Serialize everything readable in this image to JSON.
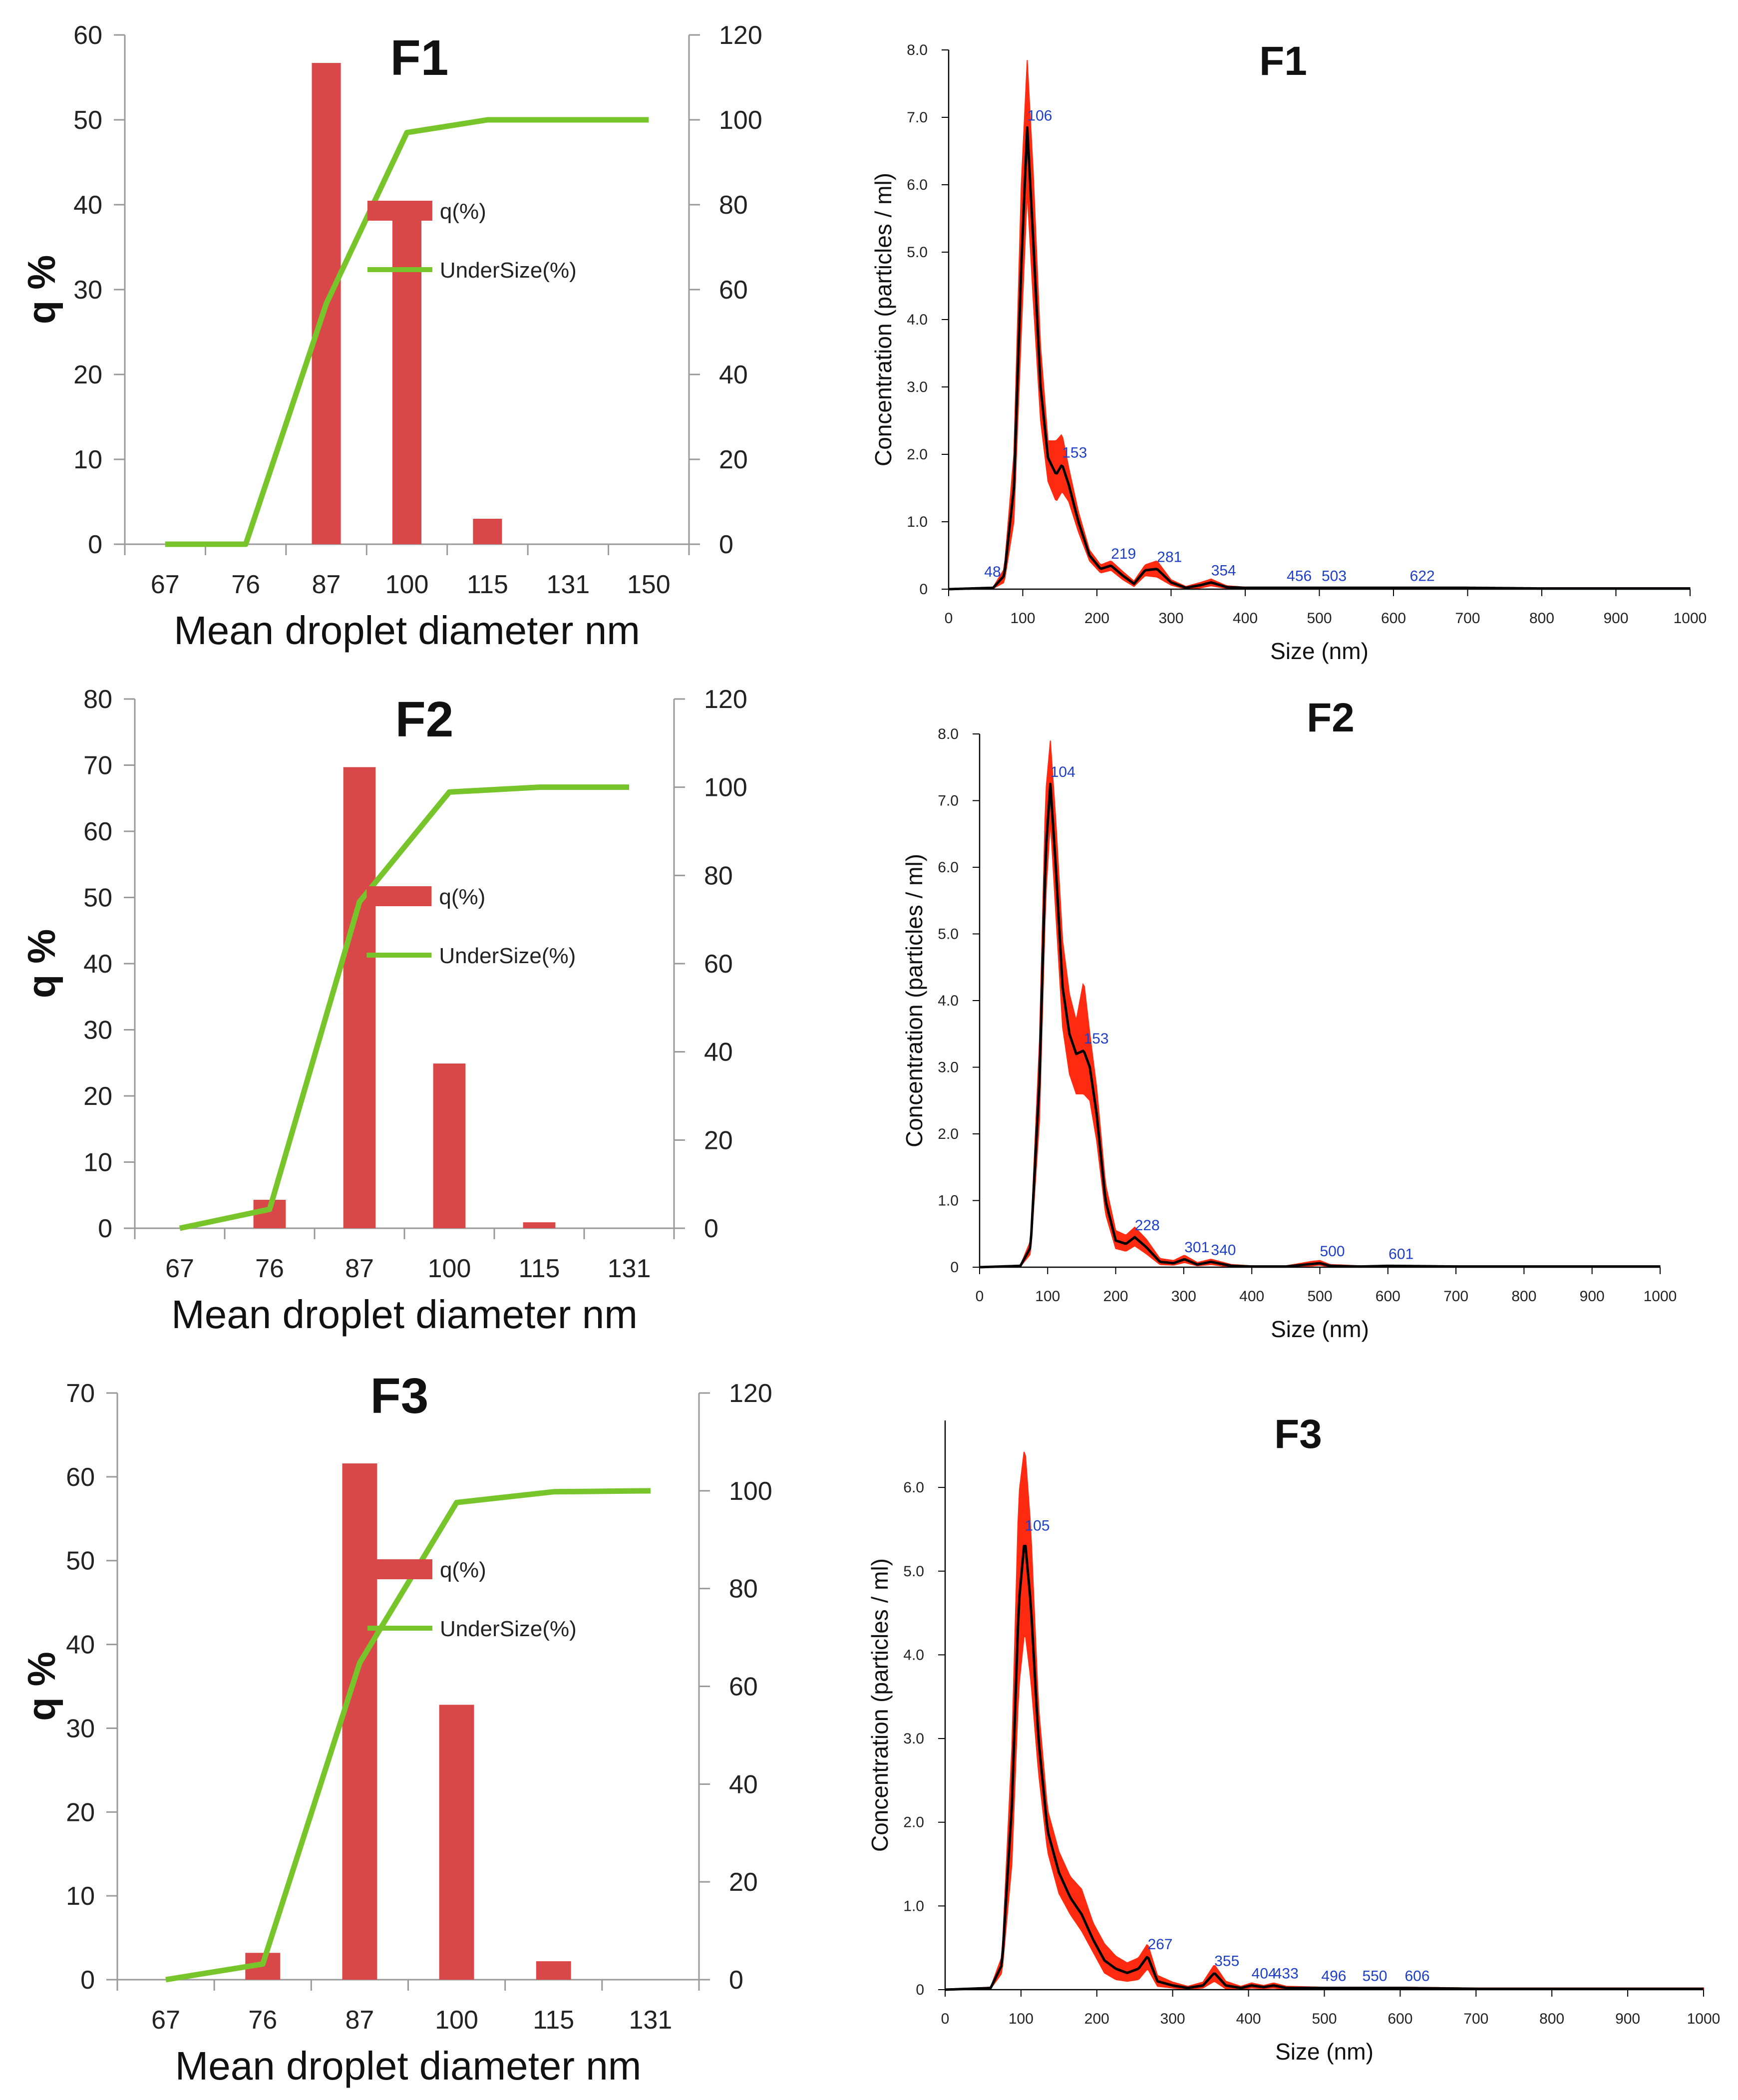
{
  "chart_data": [
    {
      "type": "bar+line",
      "panel": "left",
      "title": "F1",
      "categories": [
        "67",
        "76",
        "87",
        "100",
        "115",
        "131",
        "150"
      ],
      "series": [
        {
          "name": "q(%)",
          "kind": "bar",
          "axis": "left",
          "color": "#d94848",
          "values": [
            0,
            0,
            56.7,
            40.3,
            3.0,
            0,
            0
          ]
        },
        {
          "name": "UnderSize(%)",
          "kind": "line",
          "axis": "right",
          "color": "#77c52a",
          "values": [
            0,
            0,
            56.7,
            97.0,
            100,
            100,
            100
          ]
        }
      ],
      "xlabel": "Mean droplet diameter nm",
      "ylabel": "q %",
      "ylim": [
        0,
        60
      ],
      "yticks": [
        "0",
        "10",
        "20",
        "30",
        "40",
        "50",
        "60"
      ],
      "y2lim": [
        0,
        120
      ],
      "y2ticks": [
        "0",
        "20",
        "40",
        "60",
        "80",
        "100",
        "120"
      ],
      "legend": [
        "q(%)",
        "UnderSize(%)"
      ]
    },
    {
      "type": "line",
      "panel": "right",
      "title": "F1",
      "xlabel": "Size (nm)",
      "ylabel": "Concentration (particles / ml)",
      "xlim": [
        0,
        1000
      ],
      "xticks": [
        "0",
        "100",
        "200",
        "300",
        "400",
        "500",
        "600",
        "700",
        "800",
        "900",
        "1000"
      ],
      "ylim": [
        0,
        8.0
      ],
      "yticks": [
        "0",
        "1.0",
        "2.0",
        "3.0",
        "4.0",
        "5.0",
        "6.0",
        "7.0",
        "8.0"
      ],
      "peaks": [
        {
          "x": 48,
          "y": 0.08,
          "label": "48"
        },
        {
          "x": 106,
          "y": 6.85,
          "label": "106"
        },
        {
          "x": 153,
          "y": 1.85,
          "label": "153"
        },
        {
          "x": 219,
          "y": 0.35,
          "label": "219"
        },
        {
          "x": 281,
          "y": 0.3,
          "label": "281"
        },
        {
          "x": 354,
          "y": 0.1,
          "label": "354"
        },
        {
          "x": 456,
          "y": 0.02,
          "label": "456"
        },
        {
          "x": 503,
          "y": 0.02,
          "label": "503"
        },
        {
          "x": 622,
          "y": 0.02,
          "label": "622"
        }
      ],
      "curve": {
        "x": [
          0,
          60,
          75,
          88,
          98,
          106,
          114,
          124,
          134,
          145,
          153,
          162,
          175,
          190,
          205,
          219,
          235,
          250,
          265,
          281,
          300,
          320,
          340,
          354,
          375,
          400,
          450,
          500,
          600,
          700,
          800,
          1000
        ],
        "y": [
          0,
          0.02,
          0.2,
          1.5,
          4.8,
          6.85,
          5.2,
          3.0,
          1.95,
          1.7,
          1.85,
          1.55,
          1.0,
          0.5,
          0.3,
          0.35,
          0.2,
          0.08,
          0.28,
          0.3,
          0.1,
          0.02,
          0.06,
          0.1,
          0.03,
          0.02,
          0.02,
          0.02,
          0.02,
          0.02,
          0.01,
          0.01
        ]
      },
      "error_band": {
        "upper": [
          0,
          0.03,
          0.3,
          2.0,
          6.0,
          7.85,
          6.2,
          3.6,
          2.2,
          2.2,
          2.3,
          1.8,
          1.15,
          0.58,
          0.36,
          0.42,
          0.26,
          0.12,
          0.36,
          0.42,
          0.14,
          0.04,
          0.1,
          0.15,
          0.05,
          0.03,
          0.03,
          0.03,
          0.03,
          0.03,
          0.02,
          0.02
        ],
        "lower": [
          0,
          0.01,
          0.1,
          1.0,
          3.8,
          5.9,
          4.3,
          2.5,
          1.6,
          1.3,
          1.45,
          1.3,
          0.85,
          0.42,
          0.24,
          0.28,
          0.14,
          0.04,
          0.2,
          0.18,
          0.06,
          0.0,
          0.02,
          0.05,
          0.01,
          0.01,
          0.01,
          0.01,
          0.01,
          0.01,
          0.0,
          0.0
        ]
      }
    },
    {
      "type": "bar+line",
      "panel": "left",
      "title": "F2",
      "categories": [
        "67",
        "76",
        "87",
        "100",
        "115",
        "131"
      ],
      "series": [
        {
          "name": "q(%)",
          "kind": "bar",
          "axis": "left",
          "color": "#d94848",
          "values": [
            0,
            4.3,
            69.7,
            24.9,
            0.9,
            0
          ]
        },
        {
          "name": "UnderSize(%)",
          "kind": "line",
          "axis": "right",
          "color": "#77c52a",
          "values": [
            0,
            4.3,
            74.0,
            98.9,
            100,
            100
          ]
        }
      ],
      "xlabel": "Mean droplet diameter nm",
      "ylabel": "q %",
      "ylim": [
        0,
        80
      ],
      "yticks": [
        "0",
        "10",
        "20",
        "30",
        "40",
        "50",
        "60",
        "70",
        "80"
      ],
      "y2lim": [
        0,
        120
      ],
      "y2ticks": [
        "0",
        "20",
        "40",
        "60",
        "80",
        "100",
        "120"
      ],
      "legend": [
        "q(%)",
        "UnderSize(%)"
      ]
    },
    {
      "type": "line",
      "panel": "right",
      "title": "F2",
      "xlabel": "Size (nm)",
      "ylabel": "Concentration (particles / ml)",
      "xlim": [
        0,
        1000
      ],
      "xticks": [
        "0",
        "100",
        "200",
        "300",
        "400",
        "500",
        "600",
        "700",
        "800",
        "900",
        "1000"
      ],
      "ylim": [
        0,
        8.0
      ],
      "yticks": [
        "0",
        "1.0",
        "2.0",
        "3.0",
        "4.0",
        "5.0",
        "6.0",
        "7.0",
        "8.0"
      ],
      "peaks": [
        {
          "x": 104,
          "y": 7.25,
          "label": "104"
        },
        {
          "x": 153,
          "y": 3.25,
          "label": "153"
        },
        {
          "x": 228,
          "y": 0.45,
          "label": "228"
        },
        {
          "x": 301,
          "y": 0.12,
          "label": "301"
        },
        {
          "x": 340,
          "y": 0.08,
          "label": "340"
        },
        {
          "x": 500,
          "y": 0.06,
          "label": "500"
        },
        {
          "x": 601,
          "y": 0.02,
          "label": "601"
        }
      ],
      "curve": {
        "x": [
          0,
          60,
          75,
          88,
          97,
          104,
          112,
          122,
          132,
          142,
          153,
          162,
          172,
          185,
          200,
          215,
          228,
          245,
          265,
          285,
          301,
          320,
          340,
          370,
          400,
          450,
          490,
          500,
          515,
          560,
          601,
          700,
          800,
          1000
        ],
        "y": [
          0,
          0.02,
          0.3,
          2.8,
          6.2,
          7.25,
          6.0,
          4.2,
          3.5,
          3.2,
          3.25,
          3.0,
          2.3,
          1.0,
          0.4,
          0.35,
          0.45,
          0.3,
          0.08,
          0.06,
          0.12,
          0.04,
          0.08,
          0.02,
          0.01,
          0.01,
          0.05,
          0.06,
          0.02,
          0.01,
          0.02,
          0.01,
          0.01,
          0.01
        ]
      },
      "error_band": {
        "upper": [
          0,
          0.03,
          0.4,
          3.4,
          7.1,
          7.9,
          6.7,
          4.9,
          4.1,
          3.7,
          4.3,
          3.5,
          2.7,
          1.25,
          0.55,
          0.48,
          0.6,
          0.42,
          0.13,
          0.1,
          0.18,
          0.07,
          0.12,
          0.04,
          0.02,
          0.02,
          0.09,
          0.1,
          0.04,
          0.02,
          0.03,
          0.02,
          0.02,
          0.02
        ],
        "lower": [
          0,
          0.01,
          0.2,
          2.2,
          5.5,
          6.7,
          5.3,
          3.6,
          2.9,
          2.6,
          2.6,
          2.5,
          1.9,
          0.8,
          0.28,
          0.24,
          0.32,
          0.2,
          0.04,
          0.03,
          0.07,
          0.02,
          0.04,
          0.0,
          0.0,
          0.0,
          0.02,
          0.03,
          0.0,
          0.0,
          0.0,
          0.0,
          0.0,
          0.0
        ]
      }
    },
    {
      "type": "bar+line",
      "panel": "left",
      "title": "F3",
      "categories": [
        "67",
        "76",
        "87",
        "100",
        "115",
        "131"
      ],
      "series": [
        {
          "name": "q(%)",
          "kind": "bar",
          "axis": "left",
          "color": "#d94848",
          "values": [
            0,
            3.2,
            61.6,
            32.8,
            2.2,
            0
          ]
        },
        {
          "name": "UnderSize(%)",
          "kind": "line",
          "axis": "right",
          "color": "#77c52a",
          "values": [
            0,
            3.2,
            64.8,
            97.6,
            99.8,
            100
          ]
        }
      ],
      "xlabel": "Mean droplet diameter nm",
      "ylabel": "q %",
      "ylim": [
        0,
        70
      ],
      "yticks": [
        "0",
        "10",
        "20",
        "30",
        "40",
        "50",
        "60",
        "70"
      ],
      "y2lim": [
        0,
        120
      ],
      "y2ticks": [
        "0",
        "20",
        "40",
        "60",
        "80",
        "100",
        "120"
      ],
      "legend": [
        "q(%)",
        "UnderSize(%)"
      ]
    },
    {
      "type": "line",
      "panel": "right",
      "title": "F3",
      "xlabel": "Size (nm)",
      "ylabel": "Concentration (particles / ml)",
      "xlim": [
        0,
        1000
      ],
      "xticks": [
        "0",
        "100",
        "200",
        "300",
        "400",
        "500",
        "600",
        "700",
        "800",
        "900",
        "1000"
      ],
      "ylim": [
        0,
        6.8
      ],
      "yticks": [
        "0",
        "1.0",
        "2.0",
        "3.0",
        "4.0",
        "5.0",
        "6.0"
      ],
      "peaks": [
        {
          "x": 105,
          "y": 5.4,
          "label": "105"
        },
        {
          "x": 267,
          "y": 0.4,
          "label": "267"
        },
        {
          "x": 355,
          "y": 0.2,
          "label": "355"
        },
        {
          "x": 404,
          "y": 0.05,
          "label": "404"
        },
        {
          "x": 433,
          "y": 0.05,
          "label": "433"
        },
        {
          "x": 496,
          "y": 0.02,
          "label": "496"
        },
        {
          "x": 550,
          "y": 0.02,
          "label": "550"
        },
        {
          "x": 606,
          "y": 0.02,
          "label": "606"
        }
      ],
      "curve": {
        "x": [
          0,
          60,
          75,
          88,
          97,
          105,
          113,
          123,
          135,
          150,
          165,
          180,
          195,
          210,
          225,
          240,
          255,
          267,
          280,
          300,
          320,
          340,
          355,
          370,
          390,
          404,
          420,
          433,
          450,
          496,
          550,
          606,
          700,
          800,
          1000
        ],
        "y": [
          0,
          0.02,
          0.3,
          2.2,
          4.6,
          5.4,
          4.6,
          3.0,
          1.9,
          1.4,
          1.1,
          0.9,
          0.6,
          0.35,
          0.25,
          0.2,
          0.25,
          0.4,
          0.1,
          0.05,
          0.02,
          0.05,
          0.2,
          0.05,
          0.02,
          0.05,
          0.03,
          0.05,
          0.02,
          0.02,
          0.02,
          0.02,
          0.01,
          0.01,
          0.01
        ]
      },
      "error_band": {
        "upper": [
          0,
          0.03,
          0.4,
          2.9,
          5.9,
          6.5,
          5.5,
          3.4,
          2.15,
          1.65,
          1.35,
          1.2,
          0.8,
          0.55,
          0.4,
          0.32,
          0.38,
          0.55,
          0.17,
          0.09,
          0.04,
          0.09,
          0.3,
          0.1,
          0.04,
          0.08,
          0.05,
          0.08,
          0.04,
          0.03,
          0.03,
          0.03,
          0.02,
          0.02,
          0.02
        ],
        "lower": [
          0,
          0.01,
          0.2,
          1.5,
          3.6,
          4.3,
          3.7,
          2.6,
          1.65,
          1.15,
          0.9,
          0.7,
          0.45,
          0.2,
          0.12,
          0.1,
          0.12,
          0.25,
          0.04,
          0.02,
          0.0,
          0.02,
          0.1,
          0.01,
          0.0,
          0.02,
          0.01,
          0.02,
          0.0,
          0.0,
          0.0,
          0.0,
          0.0,
          0.0,
          0.0
        ]
      }
    }
  ]
}
